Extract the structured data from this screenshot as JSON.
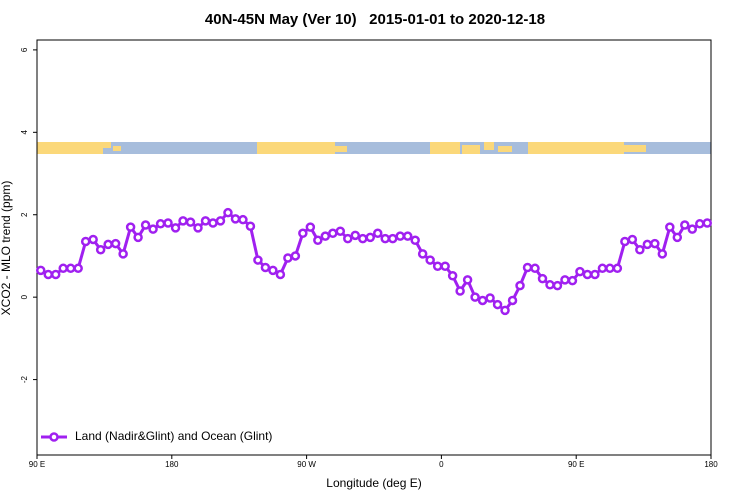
{
  "chart_data": {
    "type": "line",
    "title": "40N-45N May (Ver 10)   2015-01-01 to 2020-12-18",
    "x_label": "Longitude (deg E)",
    "y_label": "XCO2 - MLO trend (ppm)",
    "xlim": [
      90,
      540
    ],
    "ylim": [
      -3.83,
      6.24
    ],
    "xticks": [
      {
        "value": 90,
        "label": "90 E"
      },
      180,
      {
        "value": 270,
        "label": "90 W"
      },
      {
        "value": 360,
        "label": "0"
      },
      {
        "value": 450,
        "label": "90 E"
      },
      {
        "value": 540,
        "label": "180"
      }
    ],
    "yticks": [
      -2,
      0,
      2,
      4,
      6
    ],
    "legend": "bottomleft",
    "x": [
      92.5,
      97.5,
      102.5,
      107.5,
      112.5,
      117.5,
      122.5,
      127.5,
      132.5,
      137.5,
      142.5,
      147.5,
      152.5,
      157.5,
      162.5,
      167.5,
      172.5,
      177.5,
      182.5,
      187.5,
      192.5,
      197.5,
      202.5,
      207.5,
      212.5,
      217.5,
      222.5,
      227.5,
      232.5,
      237.5,
      242.5,
      247.5,
      252.5,
      257.5,
      262.5,
      267.5,
      272.5,
      277.5,
      282.5,
      287.5,
      292.5,
      297.5,
      302.5,
      307.5,
      312.5,
      317.5,
      322.5,
      327.5,
      332.5,
      337.5,
      342.5,
      347.5,
      352.5,
      357.5,
      362.5,
      367.5,
      372.5,
      377.5,
      382.5,
      387.5,
      392.5,
      397.5,
      402.5,
      407.5,
      412.5,
      417.5,
      422.5,
      427.5,
      432.5,
      437.5,
      442.5,
      447.5,
      452.5,
      457.5,
      462.5,
      467.5,
      472.5,
      477.5,
      482.5,
      487.5,
      492.5,
      497.5,
      502.5,
      507.5,
      512.5,
      517.5,
      522.5,
      527.5,
      532.5,
      537.5
    ],
    "series": [
      {
        "name": "Land (Nadir&Glint) and Ocean (Glint)",
        "color": "#a020f0",
        "values": [
          0.65,
          0.55,
          0.55,
          0.7,
          0.7,
          0.7,
          1.35,
          1.4,
          1.15,
          1.28,
          1.3,
          1.05,
          1.7,
          1.45,
          1.75,
          1.65,
          1.78,
          1.8,
          1.68,
          1.85,
          1.82,
          1.68,
          1.85,
          1.8,
          1.85,
          2.05,
          1.9,
          1.88,
          1.72,
          0.9,
          0.72,
          0.65,
          0.55,
          0.95,
          1.0,
          1.55,
          1.7,
          1.38,
          1.48,
          1.55,
          1.6,
          1.42,
          1.5,
          1.42,
          1.45,
          1.55,
          1.42,
          1.42,
          1.48,
          1.48,
          1.38,
          1.05,
          0.9,
          0.75,
          0.75,
          0.52,
          0.15,
          0.42,
          0.0,
          -0.08,
          -0.02,
          -0.18,
          -0.32,
          -0.08,
          0.28,
          0.72,
          0.7,
          0.45,
          0.3,
          0.28,
          0.42,
          0.4,
          0.62,
          0.55,
          0.55,
          0.7,
          0.7,
          0.7,
          1.35,
          1.4,
          1.15,
          1.28,
          1.3,
          1.05,
          1.7,
          1.45,
          1.75,
          1.65,
          1.78,
          1.8
        ]
      }
    ]
  }
}
